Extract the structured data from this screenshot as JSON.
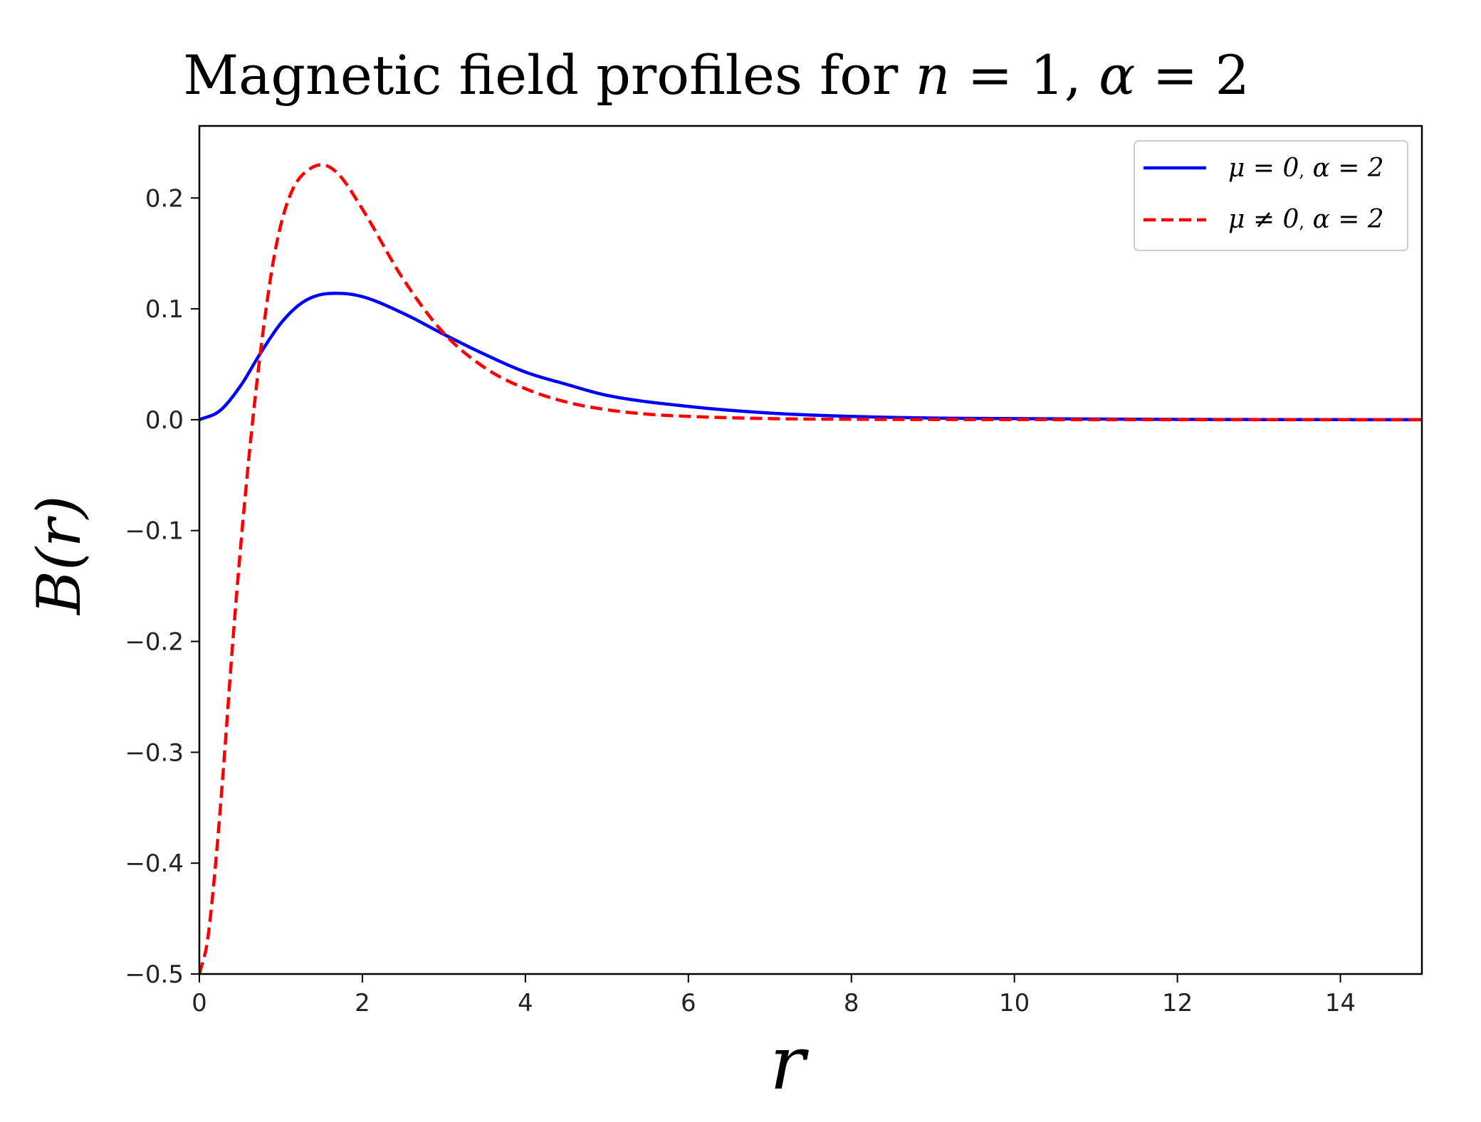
{
  "chart_data": {
    "type": "line",
    "title": "Magnetic field profiles for n = 1, α = 2",
    "title_parts": {
      "prefix": "Magnetic field profiles for ",
      "var_n": "n",
      "eq1": " = 1, ",
      "var_alpha": "α",
      "eq2": " = 2"
    },
    "xlabel": "r",
    "ylabel": "B(r)",
    "xlim": [
      0,
      15
    ],
    "ylim": [
      -0.5,
      0.265
    ],
    "xticks": [
      0,
      2,
      4,
      6,
      8,
      10,
      12,
      14
    ],
    "xtick_labels": [
      "0",
      "2",
      "4",
      "6",
      "8",
      "10",
      "12",
      "14"
    ],
    "yticks": [
      -0.5,
      -0.4,
      -0.3,
      -0.2,
      -0.1,
      0.0,
      0.1,
      0.2
    ],
    "ytick_labels": [
      "−0.5",
      "−0.4",
      "−0.3",
      "−0.2",
      "−0.1",
      "0.0",
      "0.1",
      "0.2"
    ],
    "grid": false,
    "legend_position": "top-right",
    "series": [
      {
        "name": "μ = 0, α = 2",
        "legend_parts": [
          "μ = 0",
          ",",
          " α = 2"
        ],
        "color": "#0000ff",
        "style": "solid",
        "x": [
          0,
          0.25,
          0.5,
          0.75,
          1.0,
          1.25,
          1.5,
          1.7,
          2.0,
          2.5,
          3.0,
          3.5,
          4.0,
          4.5,
          5.0,
          6.0,
          7.0,
          8.0,
          9.0,
          10.0,
          12.0,
          15.0
        ],
        "y": [
          0.0,
          0.008,
          0.03,
          0.06,
          0.087,
          0.105,
          0.113,
          0.114,
          0.111,
          0.096,
          0.077,
          0.059,
          0.043,
          0.032,
          0.022,
          0.012,
          0.006,
          0.003,
          0.0015,
          0.001,
          0.0003,
          0.0
        ]
      },
      {
        "name": "μ ≠ 0, α = 2",
        "legend_parts": [
          "μ ≠ 0",
          ",",
          " α = 2"
        ],
        "color": "#ff0000",
        "style": "dashed",
        "x": [
          0,
          0.1,
          0.2,
          0.3,
          0.4,
          0.5,
          0.6,
          0.7,
          0.8,
          0.9,
          1.0,
          1.1,
          1.2,
          1.35,
          1.5,
          1.7,
          2.0,
          2.5,
          3.0,
          3.5,
          4.0,
          4.5,
          5.0,
          5.5,
          6.0,
          7.0,
          8.0,
          10.0,
          12.0,
          15.0
        ],
        "y": [
          -0.5,
          -0.47,
          -0.4,
          -0.31,
          -0.21,
          -0.12,
          -0.04,
          0.03,
          0.09,
          0.14,
          0.176,
          0.2,
          0.215,
          0.226,
          0.23,
          0.222,
          0.19,
          0.127,
          0.078,
          0.047,
          0.028,
          0.016,
          0.009,
          0.005,
          0.003,
          0.001,
          0.0004,
          0.0001,
          0.0,
          0.0
        ]
      }
    ]
  }
}
